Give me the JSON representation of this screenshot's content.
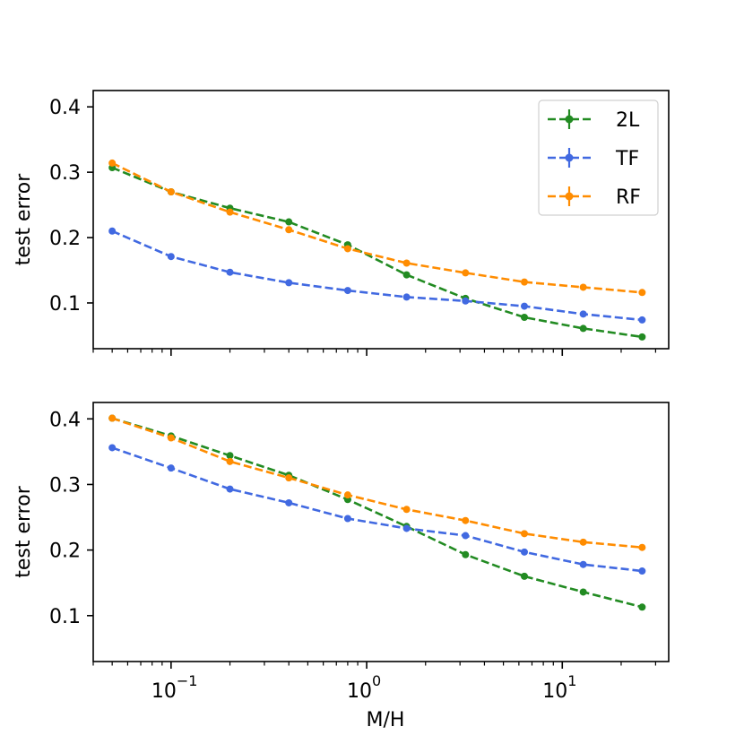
{
  "chart_data": [
    {
      "type": "line",
      "title": "",
      "xlabel": "",
      "ylabel": "test error",
      "xscale": "log",
      "xlim": [
        0.04,
        35
      ],
      "ylim": [
        0.03,
        0.425
      ],
      "yticks": [
        0.1,
        0.2,
        0.3,
        0.4
      ],
      "ytick_labels": [
        "0.1",
        "0.2",
        "0.3",
        "0.4"
      ],
      "xtick_labels_shown": false,
      "legend": "top-right",
      "x": [
        0.05,
        0.1,
        0.2,
        0.4,
        0.8,
        1.6,
        3.2,
        6.4,
        12.8,
        25.6
      ],
      "series": [
        {
          "name": "2L",
          "color": "#228b22",
          "values": [
            0.307,
            0.27,
            0.245,
            0.224,
            0.189,
            0.143,
            0.107,
            0.078,
            0.061,
            0.048
          ]
        },
        {
          "name": "TF",
          "color": "#4169e1",
          "values": [
            0.21,
            0.171,
            0.147,
            0.131,
            0.119,
            0.109,
            0.103,
            0.095,
            0.083,
            0.074
          ]
        },
        {
          "name": "RF",
          "color": "#ff8c00",
          "values": [
            0.314,
            0.27,
            0.239,
            0.212,
            0.183,
            0.161,
            0.146,
            0.132,
            0.124,
            0.116
          ]
        }
      ]
    },
    {
      "type": "line",
      "title": "",
      "xlabel": "M/H",
      "ylabel": "test error",
      "xscale": "log",
      "xlim": [
        0.04,
        35
      ],
      "ylim": [
        0.03,
        0.425
      ],
      "yticks": [
        0.1,
        0.2,
        0.3,
        0.4
      ],
      "ytick_labels": [
        "0.1",
        "0.2",
        "0.3",
        "0.4"
      ],
      "xtick_labels_shown": true,
      "legend": "none",
      "x": [
        0.05,
        0.1,
        0.2,
        0.4,
        0.8,
        1.6,
        3.2,
        6.4,
        12.8,
        25.6
      ],
      "series": [
        {
          "name": "2L",
          "color": "#228b22",
          "values": [
            0.401,
            0.374,
            0.344,
            0.314,
            0.277,
            0.236,
            0.193,
            0.16,
            0.136,
            0.113
          ]
        },
        {
          "name": "TF",
          "color": "#4169e1",
          "values": [
            0.356,
            0.325,
            0.293,
            0.272,
            0.248,
            0.233,
            0.222,
            0.197,
            0.178,
            0.168
          ]
        },
        {
          "name": "RF",
          "color": "#ff8c00",
          "values": [
            0.401,
            0.371,
            0.335,
            0.31,
            0.284,
            0.262,
            0.245,
            0.225,
            0.212,
            0.204
          ]
        }
      ]
    }
  ],
  "xtick_major": [
    {
      "value": 0.1,
      "base": "10",
      "exp": "−1"
    },
    {
      "value": 1,
      "base": "10",
      "exp": "0"
    },
    {
      "value": 10,
      "base": "10",
      "exp": "1"
    }
  ]
}
